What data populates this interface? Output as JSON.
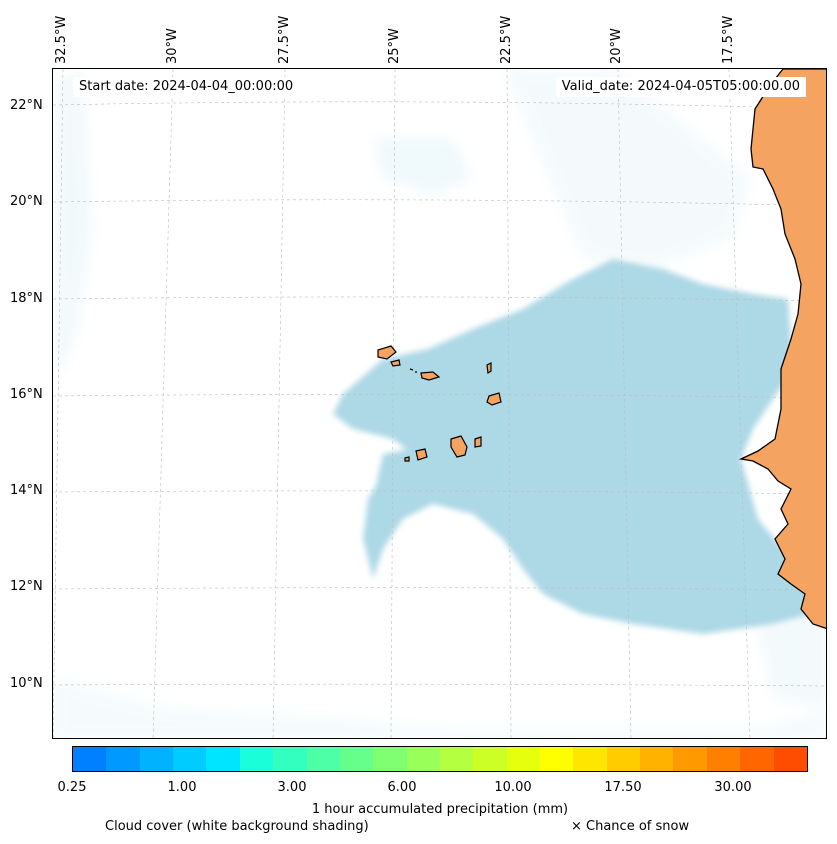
{
  "map": {
    "start_date": "Start date: 2024-04-04_00:00:00",
    "valid_date": "Valid_date: 2024-04-05T05:00:00.00",
    "longitudes": [
      "32.5°W",
      "30°W",
      "27.5°W",
      "25°W",
      "22.5°W",
      "20°W",
      "17.5°W"
    ],
    "latitudes": [
      "22°N",
      "20°N",
      "18°N",
      "16°N",
      "14°N",
      "12°N",
      "10°N"
    ],
    "region": "Cape Verde Islands and West African coast",
    "colors": {
      "land": "#f4a460",
      "cloud": "#add8e6",
      "coastline": "#000000"
    }
  },
  "colorbar": {
    "label": "1 hour accumulated precipitation (mm)",
    "ticks": [
      "0.25",
      "1.00",
      "3.00",
      "6.00",
      "10.00",
      "17.50",
      "30.00"
    ],
    "colors": [
      "#0080ff",
      "#0099ff",
      "#00b2ff",
      "#00ccff",
      "#00e5ff",
      "#1affd9",
      "#33ffbf",
      "#4dffa6",
      "#66ff8c",
      "#80ff73",
      "#99ff59",
      "#b3ff40",
      "#ccff26",
      "#e6ff0d",
      "#ffff00",
      "#ffe600",
      "#ffcc00",
      "#ffb200",
      "#ff9900",
      "#ff8000",
      "#ff6600",
      "#ff4d00"
    ]
  },
  "legend": {
    "cloud_cover": "Cloud cover (white background shading)",
    "snow": "× Chance of snow"
  }
}
